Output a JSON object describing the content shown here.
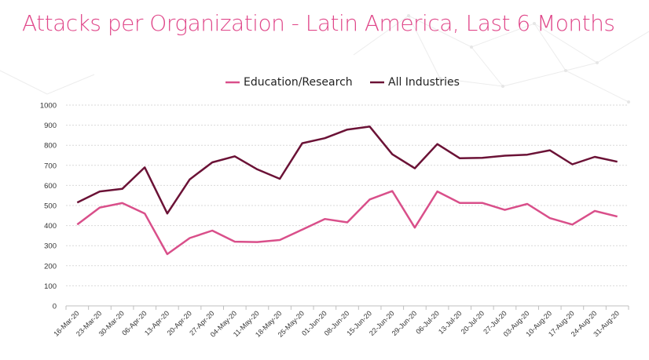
{
  "page": {
    "title": "Attacks per Organization - Latin America, Last 6 Months"
  },
  "chart_data": {
    "type": "line",
    "title": "Attacks per Organization - Latin America, Last 6 Months",
    "xlabel": "",
    "ylabel": "",
    "ylim": [
      0,
      1000
    ],
    "yticks": [
      "0",
      "100",
      "200",
      "300",
      "400",
      "500",
      "600",
      "700",
      "800",
      "900",
      "1000"
    ],
    "grid": "horizontal-dotted",
    "legend_position": "top-center",
    "categories": [
      "16-Mar-20",
      "23-Mar-20",
      "30-Mar-20",
      "06-Apr-20",
      "13-Apr-20",
      "20-Apr-20",
      "27-Apr-20",
      "04-May-20",
      "11-May-20",
      "18-May-20",
      "25-May-20",
      "01-Jun-20",
      "08-Jun-20",
      "15-Jun-20",
      "22-Jun-20",
      "29-Jun-20",
      "06-Jul-20",
      "13-Jul-20",
      "20-Jul-20",
      "27-Jul-20",
      "03-Aug-20",
      "10-Aug-20",
      "17-Aug-20",
      "24-Aug-20",
      "31-Aug-20"
    ],
    "series": [
      {
        "name": "Education/Research",
        "color": "#d94f8a",
        "values": [
          405,
          490,
          512,
          460,
          258,
          338,
          375,
          320,
          318,
          328,
          380,
          433,
          416,
          530,
          572,
          390,
          570,
          513,
          513,
          478,
          508,
          437,
          405,
          473,
          445
        ]
      },
      {
        "name": "All Industries",
        "color": "#6b1236",
        "values": [
          515,
          570,
          583,
          690,
          460,
          630,
          715,
          745,
          680,
          633,
          810,
          835,
          878,
          893,
          755,
          685,
          806,
          735,
          737,
          748,
          753,
          775,
          705,
          742,
          718
        ]
      }
    ]
  }
}
